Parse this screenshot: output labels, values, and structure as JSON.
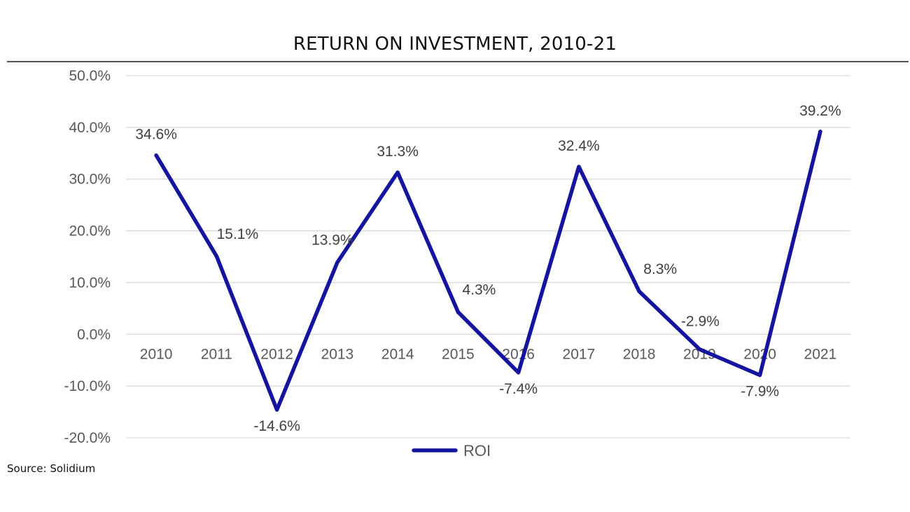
{
  "title": "RETURN ON INVESTMENT, 2010-21",
  "source": "Source: Solidium",
  "colors": {
    "line": "#1414A0",
    "grid": "#D9D9D9",
    "text": "#595959"
  },
  "chart_data": {
    "type": "line",
    "title": "RETURN ON INVESTMENT, 2010-21",
    "categories": [
      "2010",
      "2011",
      "2012",
      "2013",
      "2014",
      "2015",
      "2016",
      "2017",
      "2018",
      "2019",
      "2020",
      "2021"
    ],
    "series": [
      {
        "name": "ROI",
        "values": [
          34.6,
          15.1,
          -14.6,
          13.9,
          31.3,
          4.3,
          -7.4,
          32.4,
          8.3,
          -2.9,
          -7.9,
          39.2
        ]
      }
    ],
    "data_labels": [
      "34.6%",
      "15.1%",
      "-14.6%",
      "13.9%",
      "31.3%",
      "4.3%",
      "-7.4%",
      "32.4%",
      "8.3%",
      "-2.9%",
      "-7.9%",
      "39.2%"
    ],
    "ylim": [
      -20,
      50
    ],
    "yticks": [
      50,
      40,
      30,
      20,
      10,
      0,
      -10,
      -20
    ],
    "ytick_labels": [
      "50.0%",
      "40.0%",
      "30.0%",
      "20.0%",
      "10.0%",
      "0.0%",
      "-10.0%",
      "-20.0%"
    ],
    "grid": true,
    "legend": "bottom-center"
  }
}
